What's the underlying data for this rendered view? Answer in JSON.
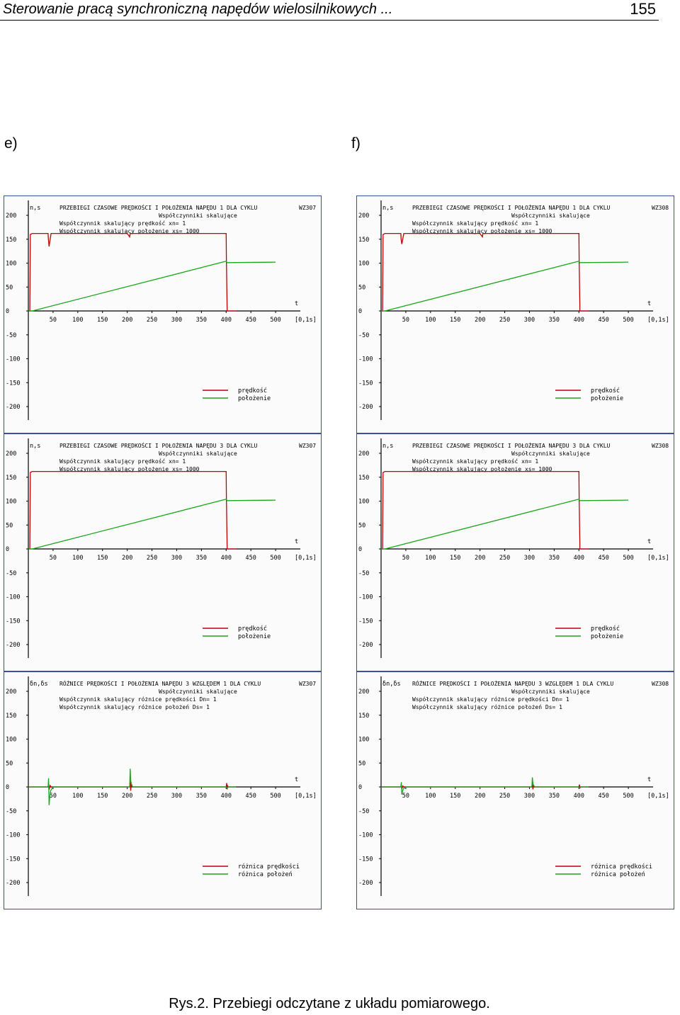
{
  "header": {
    "running_title": "Sterowanie pracą synchroniczną napędów wielosilnikowych ...",
    "page_number": "155"
  },
  "sublabels": {
    "left": "e)",
    "right": "f)"
  },
  "caption": "Rys.2. Przebiegi odczytane z układu pomiarowego.",
  "colors": {
    "speed": "#c00000",
    "position": "#1aa61a",
    "axis": "#000000",
    "frame": "#3a4fa0"
  },
  "chart_data": [
    {
      "id": "e1",
      "type": "line",
      "ylabel": "n,s",
      "title": "PRZEBIEGI CZASOWE PRĘDKOŚCI I POŁOŻENIA NAPĘDU 1 DLA CYKLU",
      "code": "WZ307",
      "info": [
        "Współczynniki skalujące",
        "Współczynnik skalujący prędkość  xn= 1",
        "Współczynnik skalujący położenie xs= 1000"
      ],
      "xlabel": "t",
      "xunit": "[0,1s]",
      "xticks": [
        "50",
        "100",
        "150",
        "200",
        "250",
        "300",
        "350",
        "400",
        "450",
        "500"
      ],
      "yticks": [
        "200",
        "150",
        "100",
        "50",
        "0",
        "-50",
        "-100",
        "-150",
        "-200"
      ],
      "xlim": [
        0,
        550
      ],
      "ylim": [
        -200,
        200
      ],
      "legend": [
        "prędkość",
        "położenie"
      ],
      "series": [
        {
          "name": "prędkość",
          "x": [
            0,
            3,
            4,
            8,
            40,
            40.5,
            42,
            46,
            200,
            205,
            206,
            210,
            400,
            400.5,
            402,
            406,
            420
          ],
          "y": [
            0,
            0,
            160,
            162,
            162,
            150,
            135,
            162,
            162,
            155,
            162,
            162,
            162,
            110,
            0,
            0,
            0
          ]
        },
        {
          "name": "położenie",
          "x": [
            0,
            8,
            400,
            402,
            500
          ],
          "y": [
            0,
            0,
            104,
            101,
            102
          ]
        }
      ]
    },
    {
      "id": "f1",
      "type": "line",
      "ylabel": "n,s",
      "title": "PRZEBIEGI CZASOWE PRĘDKOŚCI I POŁOŻENIA NAPĘDU 1 DLA CYKLU",
      "code": "WZ308",
      "info": [
        "Współczynniki skalujące",
        "Współczynnik skalujący prędkość  xn= 1",
        "Współczynnik skalujący położenie xs= 1000"
      ],
      "xlabel": "t",
      "xunit": "[0,1s]",
      "xticks": [
        "50",
        "100",
        "150",
        "200",
        "250",
        "300",
        "350",
        "400",
        "450",
        "500"
      ],
      "yticks": [
        "200",
        "150",
        "100",
        "50",
        "0",
        "-50",
        "-100",
        "-150",
        "-200"
      ],
      "xlim": [
        0,
        550
      ],
      "ylim": [
        -200,
        200
      ],
      "legend": [
        "prędkość",
        "położenie"
      ],
      "series": [
        {
          "name": "prędkość",
          "x": [
            0,
            3,
            4,
            8,
            40,
            40.5,
            42,
            46,
            200,
            205,
            206,
            210,
            400,
            400.5,
            402,
            406,
            420
          ],
          "y": [
            0,
            0,
            160,
            162,
            162,
            150,
            140,
            162,
            162,
            155,
            162,
            162,
            162,
            110,
            0,
            0,
            0
          ]
        },
        {
          "name": "położenie",
          "x": [
            0,
            8,
            400,
            402,
            500
          ],
          "y": [
            0,
            0,
            104,
            101,
            102
          ]
        }
      ]
    },
    {
      "id": "e2",
      "type": "line",
      "ylabel": "n,s",
      "title": "PRZEBIEGI CZASOWE PRĘDKOŚCI I POŁOŻENIA NAPĘDU 3 DLA CYKLU",
      "code": "WZ307",
      "info": [
        "Współczynniki skalujące",
        "Współczynnik skalujący prędkość  xn= 1",
        "Współczynnik skalujący położenie xs= 1000"
      ],
      "xlabel": "t",
      "xunit": "[0,1s]",
      "xticks": [
        "50",
        "100",
        "150",
        "200",
        "250",
        "300",
        "350",
        "400",
        "450",
        "500"
      ],
      "yticks": [
        "200",
        "150",
        "100",
        "50",
        "0",
        "-50",
        "-100",
        "-150",
        "-200"
      ],
      "xlim": [
        0,
        550
      ],
      "ylim": [
        -200,
        200
      ],
      "legend": [
        "prędkość",
        "położenie"
      ],
      "series": [
        {
          "name": "prędkość",
          "x": [
            0,
            3,
            4,
            8,
            400,
            400.5,
            402,
            406,
            420
          ],
          "y": [
            0,
            0,
            160,
            162,
            162,
            110,
            0,
            0,
            0
          ]
        },
        {
          "name": "położenie",
          "x": [
            0,
            8,
            400,
            402,
            500
          ],
          "y": [
            0,
            0,
            104,
            101,
            102
          ]
        }
      ]
    },
    {
      "id": "f2",
      "type": "line",
      "ylabel": "n,s",
      "title": "PRZEBIEGI CZASOWE PRĘDKOŚCI I POŁOŻENIA NAPĘDU 3 DLA CYKLU",
      "code": "WZ308",
      "info": [
        "Współczynniki skalujące",
        "Współczynnik skalujący prędkość  xn= 1",
        "Współczynnik skalujący położenie xs= 1000"
      ],
      "xlabel": "t",
      "xunit": "[0,1s]",
      "xticks": [
        "50",
        "100",
        "150",
        "200",
        "250",
        "300",
        "350",
        "400",
        "450",
        "500"
      ],
      "yticks": [
        "200",
        "150",
        "100",
        "50",
        "0",
        "-50",
        "-100",
        "-150",
        "-200"
      ],
      "xlim": [
        0,
        550
      ],
      "ylim": [
        -200,
        200
      ],
      "legend": [
        "prędkość",
        "położenie"
      ],
      "series": [
        {
          "name": "prędkość",
          "x": [
            0,
            3,
            4,
            8,
            400,
            400.5,
            402,
            406,
            420
          ],
          "y": [
            0,
            0,
            160,
            162,
            162,
            110,
            0,
            0,
            0
          ]
        },
        {
          "name": "położenie",
          "x": [
            0,
            8,
            400,
            402,
            500
          ],
          "y": [
            0,
            0,
            104,
            101,
            102
          ]
        }
      ]
    },
    {
      "id": "e3",
      "type": "line",
      "ylabel": "δn,δs",
      "title": "RÓŻNICE PRĘDKOŚCI I POŁOŻENIA NAPĘDU 3 WZGLĘDEM 1 DLA CYKLU",
      "code": "WZ307",
      "info": [
        "Współczynniki skalujące",
        "Współczynnik skalujący różnice prędkości Dn= 1",
        "Współczynnik skalujący różnice położeń    Ds= 1"
      ],
      "xlabel": "t",
      "xunit": "[0,1s]",
      "xticks": [
        "50",
        "100",
        "150",
        "200",
        "250",
        "300",
        "350",
        "400",
        "450",
        "500"
      ],
      "yticks": [
        "200",
        "150",
        "100",
        "50",
        "0",
        "-50",
        "-100",
        "-150",
        "-200"
      ],
      "xlim": [
        0,
        550
      ],
      "ylim": [
        -200,
        200
      ],
      "legend": [
        "różnica prędkości",
        "różnica położeń"
      ],
      "series": [
        {
          "name": "różnica prędkości",
          "x": [
            0,
            40,
            41,
            42,
            44,
            46,
            50,
            205,
            206,
            207,
            208,
            210,
            400,
            401,
            402,
            403,
            404,
            420
          ],
          "y": [
            0,
            0,
            6,
            -6,
            3,
            0,
            0,
            0,
            15,
            -8,
            4,
            0,
            0,
            8,
            -5,
            2,
            0,
            0
          ]
        },
        {
          "name": "różnica położeń",
          "x": [
            0,
            40,
            41,
            42,
            43,
            45,
            50,
            205,
            206,
            207,
            208,
            210,
            212,
            400,
            402,
            404,
            420
          ],
          "y": [
            0,
            0,
            18,
            -38,
            -25,
            -8,
            0,
            0,
            38,
            14,
            8,
            2,
            0,
            0,
            -3,
            0,
            0
          ]
        }
      ]
    },
    {
      "id": "f3",
      "type": "line",
      "ylabel": "δn,δs",
      "title": "RÓŻNICE PRĘDKOŚCI I POŁOŻENIA NAPĘDU 3 WZGLĘDEM 1 DLA CYKLU",
      "code": "WZ308",
      "info": [
        "Współczynniki skalujące",
        "Współczynnik skalujący różnice prędkości Dn= 1",
        "Współczynnik skalujący różnice położeń    Ds= 1"
      ],
      "xlabel": "t",
      "xunit": "[0,1s]",
      "xticks": [
        "50",
        "100",
        "150",
        "200",
        "250",
        "300",
        "350",
        "400",
        "450",
        "500"
      ],
      "yticks": [
        "200",
        "150",
        "100",
        "50",
        "0",
        "-50",
        "-100",
        "-150",
        "-200"
      ],
      "xlim": [
        0,
        550
      ],
      "ylim": [
        -200,
        200
      ],
      "legend": [
        "różnica prędkości",
        "różnica położeń"
      ],
      "series": [
        {
          "name": "różnica prędkości",
          "x": [
            0,
            40,
            41,
            42,
            44,
            46,
            50,
            305,
            306,
            307,
            308,
            310,
            400,
            401,
            402,
            403,
            420
          ],
          "y": [
            0,
            0,
            4,
            -4,
            2,
            0,
            0,
            0,
            8,
            -5,
            3,
            0,
            0,
            5,
            -3,
            0,
            0
          ]
        },
        {
          "name": "różnica położeń",
          "x": [
            0,
            40,
            41,
            42,
            43,
            45,
            50,
            305,
            306,
            307,
            308,
            310,
            312,
            400,
            402,
            404,
            420
          ],
          "y": [
            0,
            0,
            10,
            -16,
            -10,
            -4,
            0,
            0,
            20,
            8,
            4,
            1,
            0,
            0,
            -2,
            0,
            0
          ]
        }
      ]
    }
  ]
}
